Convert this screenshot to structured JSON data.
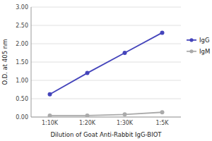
{
  "chart_data": {
    "type": "line",
    "categories": [
      "1:10K",
      "1:20K",
      "1:30K",
      "1:5K"
    ],
    "series": [
      {
        "name": "IgG",
        "color": "#4444bb",
        "marker": "circle",
        "values": [
          0.62,
          1.2,
          1.75,
          2.3
        ]
      },
      {
        "name": "IgM",
        "color": "#aaaaaa",
        "marker": "circle",
        "values": [
          0.04,
          0.04,
          0.07,
          0.13
        ]
      }
    ],
    "xlabel": "Dilution of Goat Anti-Rabbit IgG-BIOT",
    "ylabel": "O.D. at 405 nm",
    "ylim": [
      0.0,
      3.0
    ],
    "yticks": [
      {
        "value": 0.0,
        "label": "0.00"
      },
      {
        "value": 0.5,
        "label": "0.50"
      },
      {
        "value": 1.0,
        "label": "1.00"
      },
      {
        "value": 1.5,
        "label": "1.50"
      },
      {
        "value": 2.0,
        "label": "2.00"
      },
      {
        "value": 2.5,
        "label": "2.50"
      },
      {
        "value": 3.0,
        "label": "3.00"
      }
    ],
    "grid": true,
    "legend": "right"
  }
}
